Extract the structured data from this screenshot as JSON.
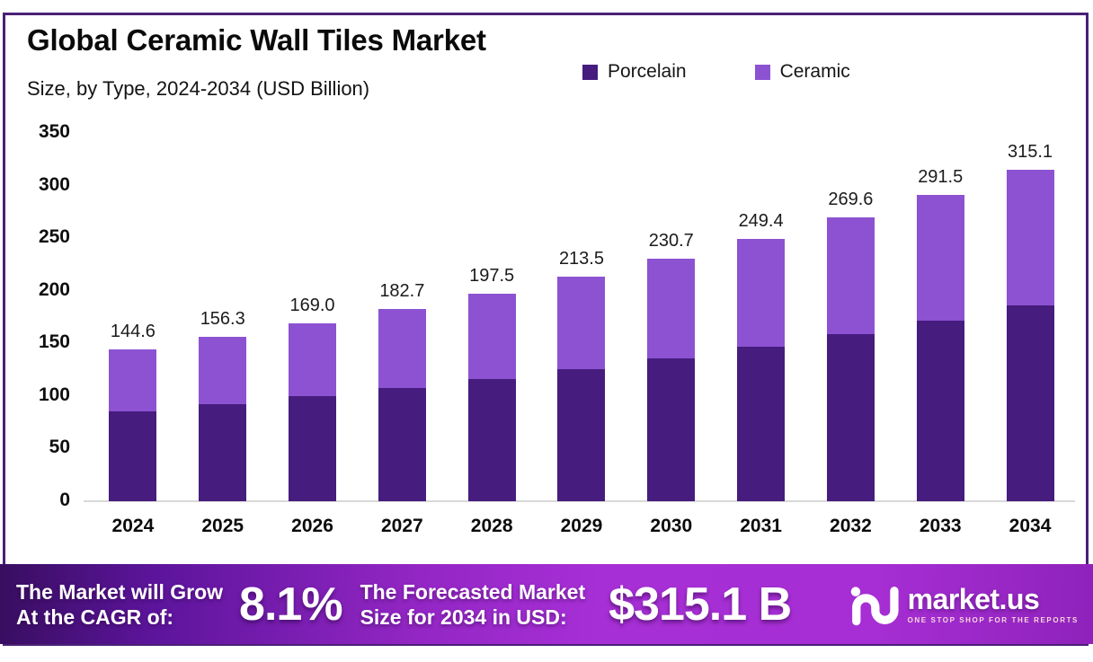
{
  "header": {
    "title": "Global Ceramic Wall Tiles Market",
    "subtitle": "Size, by Type, 2024-2034 (USD Billion)"
  },
  "legend": {
    "items": [
      {
        "label": "Porcelain",
        "color": "#461C7E"
      },
      {
        "label": "Ceramic",
        "color": "#8C52D2"
      }
    ]
  },
  "chart_data": {
    "type": "bar",
    "stacked": true,
    "title": "Global Ceramic Wall Tiles Market",
    "subtitle": "Size, by Type, 2024-2034 (USD Billion)",
    "categories": [
      "2024",
      "2025",
      "2026",
      "2027",
      "2028",
      "2029",
      "2030",
      "2031",
      "2032",
      "2033",
      "2034"
    ],
    "series": [
      {
        "name": "Porcelain",
        "color": "#461C7E",
        "values": [
          85.3,
          92.2,
          99.7,
          107.8,
          116.5,
          125.9,
          136.1,
          147.1,
          159.1,
          172.0,
          185.9
        ],
        "estimated_from_pixels": true
      },
      {
        "name": "Ceramic",
        "color": "#8C52D2",
        "values": [
          59.3,
          64.1,
          69.3,
          74.9,
          81.0,
          87.6,
          94.6,
          102.3,
          110.5,
          119.5,
          129.2
        ],
        "estimated_from_pixels": true
      }
    ],
    "totals": [
      144.6,
      156.3,
      169.0,
      182.7,
      197.5,
      213.5,
      230.7,
      249.4,
      269.6,
      291.5,
      315.1
    ],
    "total_labels": [
      "144.6",
      "156.3",
      "169.0",
      "182.7",
      "197.5",
      "213.5",
      "230.7",
      "249.4",
      "269.6",
      "291.5",
      "315.1"
    ],
    "xlabel": "",
    "ylabel": "",
    "ylim": [
      0,
      350
    ],
    "yticks": [
      0,
      50,
      100,
      150,
      200,
      250,
      300,
      350
    ],
    "grid": false,
    "legend_position": "top-right"
  },
  "footer": {
    "cagr_caption_line1": "The Market will Grow",
    "cagr_caption_line2": "At the CAGR of:",
    "cagr_value": "8.1%",
    "forecast_caption_line1": "The Forecasted Market",
    "forecast_caption_line2": "Size for 2034 in USD:",
    "forecast_value": "$315.1 B",
    "brand": "market.us",
    "tagline": "ONE STOP SHOP FOR THE REPORTS"
  },
  "colors": {
    "porcelain": "#461C7E",
    "ceramic": "#8C52D2",
    "frame_border": "#4A2076",
    "axis_line": "#D8D8D8",
    "banner_dark": "#380E60",
    "banner_bright": "#A72FD6",
    "text": "#0a0a0a"
  }
}
